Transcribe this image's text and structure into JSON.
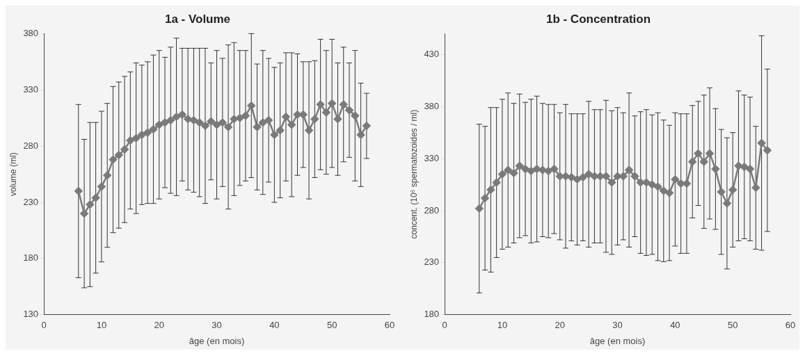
{
  "chart_data": [
    {
      "type": "line",
      "title": "1a - Volume",
      "xlabel": "âge (en mois)",
      "ylabel": "volume (ml)",
      "color": "#7a7a7a",
      "marker": "diamond",
      "line_style": "solid",
      "grid": false,
      "legend": false,
      "x": [
        6,
        7,
        8,
        9,
        10,
        11,
        12,
        13,
        14,
        15,
        16,
        17,
        18,
        19,
        20,
        21,
        22,
        23,
        24,
        25,
        26,
        27,
        28,
        29,
        30,
        31,
        32,
        33,
        34,
        35,
        36,
        37,
        38,
        39,
        40,
        41,
        42,
        43,
        44,
        45,
        46,
        47,
        48,
        49,
        50,
        51,
        52,
        53,
        54,
        55,
        56
      ],
      "values": [
        240,
        220,
        228,
        234,
        244,
        254,
        268,
        272,
        277,
        285,
        287,
        290,
        292,
        295,
        299,
        301,
        303,
        306,
        308,
        304,
        303,
        301,
        298,
        302,
        299,
        301,
        297,
        304,
        305,
        307,
        316,
        297,
        301,
        303,
        290,
        294,
        306,
        299,
        308,
        308,
        294,
        304,
        317,
        310,
        318,
        304,
        317,
        312,
        307,
        290,
        298
      ],
      "errors": [
        77,
        66,
        73,
        67,
        67,
        64,
        65,
        65,
        65,
        61,
        67,
        62,
        63,
        66,
        66,
        58,
        65,
        70,
        59,
        63,
        64,
        66,
        69,
        52,
        66,
        57,
        73,
        68,
        60,
        58,
        64,
        56,
        64,
        55,
        60,
        60,
        57,
        64,
        54,
        47,
        61,
        52,
        58,
        55,
        57,
        50,
        51,
        42,
        58,
        46,
        29
      ],
      "xlim": [
        0,
        60
      ],
      "xticks": [
        0,
        10,
        20,
        30,
        40,
        50,
        60
      ],
      "ylim": [
        130,
        380
      ],
      "yticks": [
        130,
        180,
        230,
        280,
        330,
        380
      ]
    },
    {
      "type": "line",
      "title": "1b - Concentration",
      "xlabel": "âge (en mois)",
      "ylabel": "concent. (10⁶ spermatozoides / ml)",
      "color": "#7a7a7a",
      "marker": "diamond",
      "line_style": "solid",
      "grid": false,
      "legend": false,
      "x": [
        6,
        7,
        8,
        9,
        10,
        11,
        12,
        13,
        14,
        15,
        16,
        17,
        18,
        19,
        20,
        21,
        22,
        23,
        24,
        25,
        26,
        27,
        28,
        29,
        30,
        31,
        32,
        33,
        34,
        35,
        36,
        37,
        38,
        39,
        40,
        41,
        42,
        43,
        44,
        45,
        46,
        47,
        48,
        49,
        50,
        51,
        52,
        53,
        54,
        55,
        56
      ],
      "values": [
        282,
        292,
        300,
        307,
        315,
        319,
        316,
        323,
        320,
        318,
        320,
        319,
        318,
        320,
        313,
        313,
        312,
        310,
        312,
        315,
        313,
        313,
        313,
        307,
        313,
        313,
        319,
        313,
        307,
        307,
        305,
        303,
        299,
        297,
        310,
        306,
        306,
        327,
        335,
        327,
        335,
        320,
        298,
        287,
        300,
        323,
        322,
        320,
        302,
        345,
        338
      ],
      "errors": [
        81,
        69,
        79,
        72,
        72,
        74,
        67,
        69,
        64,
        69,
        70,
        64,
        64,
        62,
        61,
        69,
        61,
        63,
        61,
        70,
        64,
        64,
        73,
        69,
        66,
        61,
        74,
        58,
        68,
        70,
        67,
        71,
        68,
        65,
        64,
        67,
        67,
        54,
        50,
        64,
        63,
        58,
        60,
        63,
        55,
        72,
        69,
        69,
        59,
        103,
        78
      ],
      "xlim": [
        0,
        60
      ],
      "xticks": [
        0,
        10,
        20,
        30,
        40,
        50,
        60
      ],
      "ylim": [
        180,
        450
      ],
      "yticks": [
        180,
        230,
        280,
        330,
        380,
        430
      ]
    }
  ]
}
